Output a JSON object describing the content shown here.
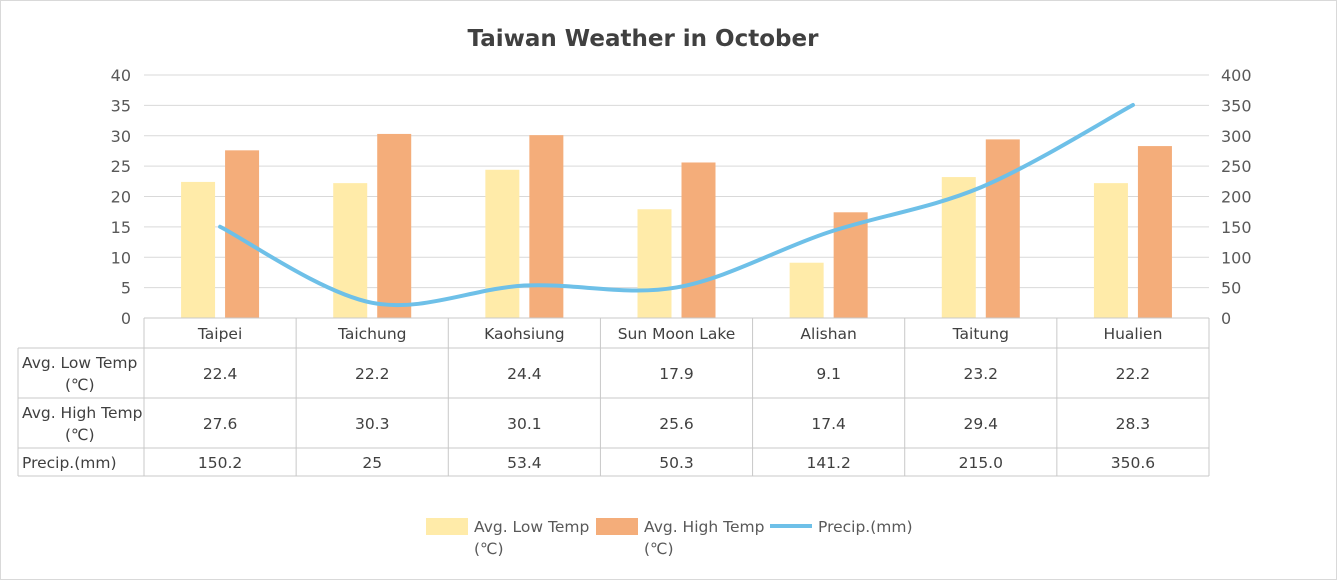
{
  "chart_data": {
    "type": "bar",
    "title": "Taiwan Weather in October",
    "categories": [
      "Taipei",
      "Taichung",
      "Kaohsiung",
      "Sun Moon Lake",
      "Alishan",
      "Taitung",
      "Hualien"
    ],
    "series": [
      {
        "name": "Avg. Low Temp (℃)",
        "name_lines": [
          "Avg. Low Temp",
          "(℃)"
        ],
        "type": "bar",
        "axis": "left",
        "color": "#FFEBA9",
        "values": [
          22.4,
          22.2,
          24.4,
          17.9,
          9.1,
          23.2,
          22.2
        ],
        "labels": [
          "22.4",
          "22.2",
          "24.4",
          "17.9",
          "9.1",
          "23.2",
          "22.2"
        ]
      },
      {
        "name": "Avg. High Temp (℃)",
        "name_lines": [
          "Avg. High Temp",
          "(℃)"
        ],
        "type": "bar",
        "axis": "left",
        "color": "#F4AD7A",
        "values": [
          27.6,
          30.3,
          30.1,
          25.6,
          17.4,
          29.4,
          28.3
        ],
        "labels": [
          "27.6",
          "30.3",
          "30.1",
          "25.6",
          "17.4",
          "29.4",
          "28.3"
        ]
      },
      {
        "name": "Precip.(mm)",
        "name_lines": [
          "Precip.(mm)"
        ],
        "type": "line",
        "axis": "right",
        "color": "#6EC0E8",
        "values": [
          150.2,
          25,
          53.4,
          50.3,
          141.2,
          215.0,
          350.6
        ],
        "labels": [
          "150.2",
          "25",
          "53.4",
          "50.3",
          "141.2",
          "215.0",
          "350.6"
        ]
      }
    ],
    "y_left": {
      "min": 0,
      "max": 40,
      "ticks": [
        "0",
        "5",
        "10",
        "15",
        "20",
        "25",
        "30",
        "35",
        "40"
      ]
    },
    "y_right": {
      "min": 0,
      "max": 400,
      "ticks": [
        "0",
        "50",
        "100",
        "150",
        "200",
        "250",
        "300",
        "350",
        "400"
      ]
    },
    "grid": true,
    "legend": "bottom",
    "data_table": true
  }
}
